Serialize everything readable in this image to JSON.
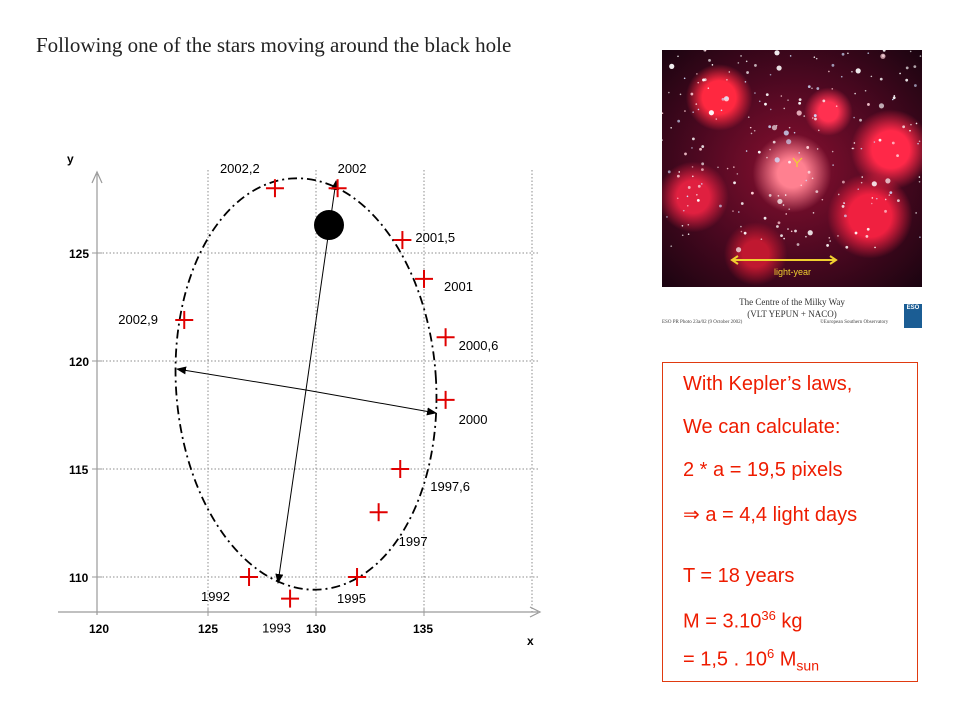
{
  "slide": {
    "title": "Following one of the stars moving around the black hole"
  },
  "plot": {
    "axis_x_label": "x",
    "axis_y_label": "y",
    "x_ticks": [
      "120",
      "125",
      "130",
      "135"
    ],
    "y_ticks": [
      "110",
      "115",
      "120",
      "125"
    ],
    "observations": [
      {
        "label": "1992",
        "x": 126.9,
        "y": 110.0
      },
      {
        "label": "1993",
        "x": 128.8,
        "y": 109.0
      },
      {
        "label": "1995",
        "x": 131.9,
        "y": 110.0
      },
      {
        "label": "1997",
        "x": 132.9,
        "y": 113.0
      },
      {
        "label": "1997,6",
        "x": 133.9,
        "y": 115.0
      },
      {
        "label": "2000",
        "x": 136.0,
        "y": 118.2
      },
      {
        "label": "2000,6",
        "x": 136.0,
        "y": 121.1
      },
      {
        "label": "2001",
        "x": 135.0,
        "y": 123.8
      },
      {
        "label": "2001,5",
        "x": 134.0,
        "y": 125.6
      },
      {
        "label": "2002",
        "x": 131.0,
        "y": 128.0
      },
      {
        "label": "2002,2",
        "x": 128.1,
        "y": 128.0
      },
      {
        "label": "2002,9",
        "x": 123.9,
        "y": 121.9
      }
    ]
  },
  "photo": {
    "scale_label": "light-year",
    "caption_title": "The Centre of the Milky Way",
    "caption_subtitle": "(VLT YEPUN + NACO)",
    "caption_left": "ESO PR Photo 23a/02 (9 October 2002)",
    "caption_right": "©European Southern Observatory",
    "logo_text": "ESO"
  },
  "calc": {
    "line1": "With Kepler’s laws,",
    "line2": "We can calculate:",
    "line3": "2 * a = 19,5 pixels",
    "arrow": "⇒",
    "line4": " a = 4,4 light days",
    "line5": "T = 18 years",
    "line6_pre": "M = 3.10",
    "line6_exp": "36",
    "line6_post": " kg",
    "line7_pre": "= 1,5 . 10",
    "line7_exp": "6",
    "line7_mid": " M",
    "line7_sub": "sun"
  },
  "colors": {
    "accent": "#ee1c00",
    "box_border": "#e03a10",
    "marker": "#e00000"
  }
}
